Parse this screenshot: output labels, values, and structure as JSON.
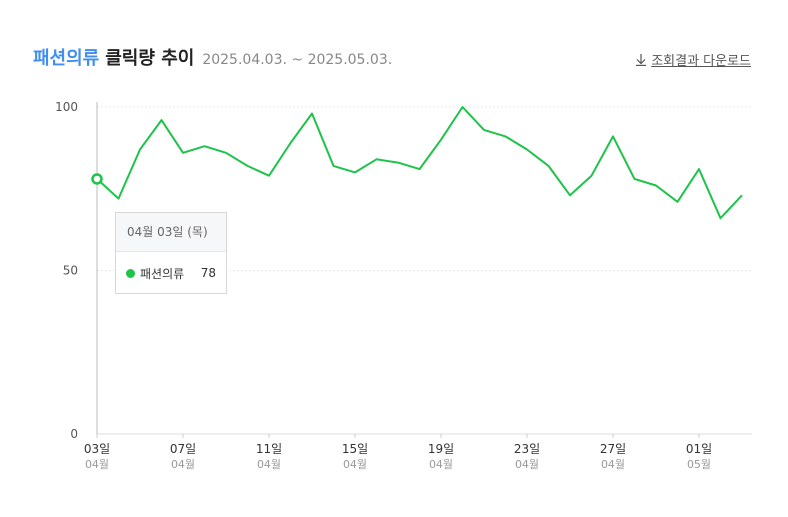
{
  "header": {
    "category": "패션의류",
    "title": "클릭량 추이",
    "date_range": "2025.04.03. ~ 2025.05.03.",
    "download_label": "조회결과 다운로드"
  },
  "tooltip": {
    "date": "04월 03일 (목)",
    "series_name": "패션의류",
    "value": "78"
  },
  "colors": {
    "line": "#1ec34a",
    "title_accent": "#3f8ef0"
  },
  "icons": {
    "download": "download-arrow-icon"
  },
  "chart_data": {
    "type": "line",
    "series": [
      {
        "name": "패션의류",
        "values": [
          78,
          72,
          87,
          96,
          86,
          88,
          86,
          82,
          79,
          89,
          98,
          82,
          80,
          84,
          83,
          81,
          90,
          100,
          93,
          91,
          87,
          82,
          73,
          79,
          91,
          78,
          76,
          71,
          81,
          66,
          73
        ]
      }
    ],
    "ylim": [
      0,
      100
    ],
    "y_ticks": [
      "0",
      "50",
      "100"
    ],
    "x_tick_labels": [
      {
        "day": "03일",
        "month": "04월",
        "index": 0
      },
      {
        "day": "07일",
        "month": "04월",
        "index": 4
      },
      {
        "day": "11일",
        "month": "04월",
        "index": 8
      },
      {
        "day": "15일",
        "month": "04월",
        "index": 12
      },
      {
        "day": "19일",
        "month": "04월",
        "index": 16
      },
      {
        "day": "23일",
        "month": "04월",
        "index": 20
      },
      {
        "day": "27일",
        "month": "04월",
        "index": 24
      },
      {
        "day": "01일",
        "month": "05월",
        "index": 28
      }
    ],
    "highlight_index": 0,
    "grid": true
  }
}
